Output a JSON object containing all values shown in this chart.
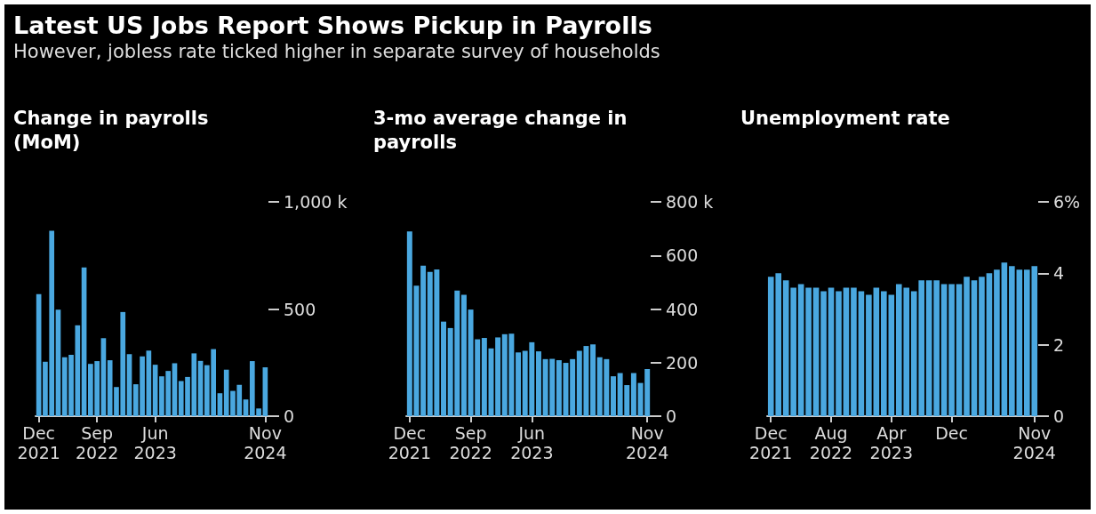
{
  "chart_data": [
    {
      "type": "bar",
      "title": "Change in payrolls (MoM)",
      "annotations": [
        "Latest US Jobs Report Shows Pickup in Payrolls",
        "However, jobless rate ticked higher in separate survey of households"
      ],
      "categories": [
        "Dec\n2021",
        null,
        null,
        null,
        null,
        null,
        null,
        null,
        null,
        "Sep\n2022",
        null,
        null,
        null,
        null,
        null,
        null,
        null,
        null,
        "Jun\n2023",
        null,
        null,
        null,
        null,
        null,
        null,
        null,
        null,
        null,
        null,
        null,
        null,
        null,
        null,
        null,
        null,
        "Nov\n2024"
      ],
      "values": [
        569,
        254,
        865,
        497,
        275,
        286,
        424,
        694,
        244,
        257,
        364,
        261,
        136,
        486,
        289,
        149,
        279,
        306,
        240,
        186,
        211,
        247,
        164,
        183,
        293,
        258,
        238,
        313,
        107,
        217,
        118,
        146,
        78,
        257,
        36,
        228
      ],
      "color": "#4aa8e0",
      "ylim": [
        0,
        1000
      ],
      "yticks": [
        0,
        500,
        {
          "value": 1000,
          "label": "1,000 k"
        }
      ]
    },
    {
      "type": "bar",
      "title": "3-mo average change in payrolls",
      "categories": [
        "Dec\n2021",
        null,
        null,
        null,
        null,
        null,
        null,
        null,
        null,
        "Sep\n2022",
        null,
        null,
        null,
        null,
        null,
        null,
        null,
        null,
        "Jun\n2023",
        null,
        null,
        null,
        null,
        null,
        null,
        null,
        null,
        null,
        null,
        null,
        null,
        null,
        null,
        null,
        null,
        "Nov\n2024"
      ],
      "values": [
        690,
        487,
        562,
        539,
        548,
        353,
        329,
        469,
        453,
        398,
        287,
        292,
        253,
        294,
        306,
        308,
        238,
        244,
        276,
        242,
        213,
        214,
        209,
        199,
        213,
        244,
        262,
        268,
        220,
        213,
        149,
        161,
        116,
        161,
        124,
        176
      ],
      "color": "#4aa8e0",
      "ylim": [
        0,
        800
      ],
      "yticks": [
        0,
        200,
        400,
        600,
        {
          "value": 800,
          "label": "800 k"
        }
      ]
    },
    {
      "type": "bar",
      "title": "Unemployment rate",
      "categories": [
        "Dec\n2021",
        null,
        null,
        null,
        null,
        null,
        null,
        null,
        "Aug\n2022",
        null,
        null,
        null,
        null,
        null,
        null,
        null,
        "Apr\n2023",
        null,
        null,
        null,
        null,
        null,
        null,
        null,
        "Dec",
        null,
        null,
        null,
        null,
        null,
        null,
        null,
        null,
        null,
        null,
        "Nov\n2024"
      ],
      "values": [
        3.9,
        4.0,
        3.8,
        3.6,
        3.7,
        3.6,
        3.6,
        3.5,
        3.6,
        3.5,
        3.6,
        3.6,
        3.5,
        3.4,
        3.6,
        3.5,
        3.4,
        3.7,
        3.6,
        3.5,
        3.8,
        3.8,
        3.8,
        3.7,
        3.7,
        3.7,
        3.9,
        3.8,
        3.9,
        4.0,
        4.1,
        4.3,
        4.2,
        4.1,
        4.1,
        4.2
      ],
      "color": "#4aa8e0",
      "ylim": [
        0,
        6
      ],
      "yticks": [
        0,
        2,
        4,
        {
          "value": 6,
          "label": "6%"
        }
      ]
    }
  ]
}
